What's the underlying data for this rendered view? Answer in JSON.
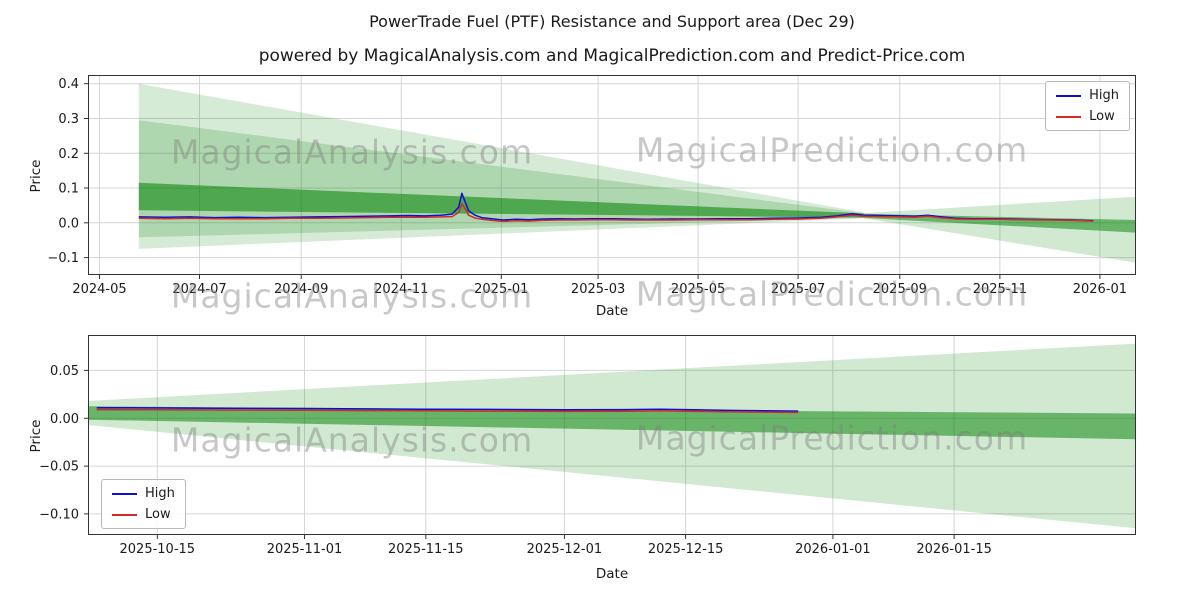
{
  "page": {
    "title": "PowerTrade Fuel (PTF) Resistance and Support area (Dec 29)",
    "subtitle": "powered by MagicalAnalysis.com and MagicalPrediction.com and Predict-Price.com"
  },
  "watermarks": {
    "analysis": "MagicalAnalysis.com",
    "prediction": "MagicalPrediction.com"
  },
  "colors": {
    "high": "#0f0fcd",
    "low": "#d22b2b",
    "band": "#008000",
    "grid": "#d6d6d6",
    "spine": "#333333",
    "tick_text": "#1a1a1a"
  },
  "chart_data": [
    {
      "type": "line",
      "title": "",
      "xlabel": "Date",
      "ylabel": "Price",
      "grid": true,
      "x_range": [
        "2024-04-24",
        "2026-01-23"
      ],
      "ylim": [
        -0.15,
        0.425
      ],
      "ytick_decimals": 1,
      "yticks": [
        -0.1,
        0.0,
        0.1,
        0.2,
        0.3,
        0.4
      ],
      "xticks": [
        {
          "label": "2024-05",
          "date": "2024-05-01"
        },
        {
          "label": "2024-07",
          "date": "2024-07-01"
        },
        {
          "label": "2024-09",
          "date": "2024-09-01"
        },
        {
          "label": "2024-11",
          "date": "2024-11-01"
        },
        {
          "label": "2025-01",
          "date": "2025-01-01"
        },
        {
          "label": "2025-03",
          "date": "2025-03-01"
        },
        {
          "label": "2025-05",
          "date": "2025-05-01"
        },
        {
          "label": "2025-07",
          "date": "2025-07-01"
        },
        {
          "label": "2025-09",
          "date": "2025-09-01"
        },
        {
          "label": "2025-11",
          "date": "2025-11-01"
        },
        {
          "label": "2026-01",
          "date": "2026-01-01"
        }
      ],
      "legend": {
        "position": "top-right",
        "items": [
          {
            "label": "High",
            "color_key": "high"
          },
          {
            "label": "Low",
            "color_key": "low"
          }
        ]
      },
      "bands": [
        {
          "name": "outer-support-fan",
          "opacity": 0.16,
          "points": [
            [
              "2024-05-25",
              0.4
            ],
            [
              "2025-08-10",
              0.03
            ],
            [
              "2025-08-10",
              0.013
            ],
            [
              "2024-05-25",
              -0.075
            ]
          ]
        },
        {
          "name": "middle-support-fan",
          "opacity": 0.18,
          "points": [
            [
              "2024-05-25",
              0.295
            ],
            [
              "2025-08-10",
              0.028
            ],
            [
              "2025-08-10",
              0.014
            ],
            [
              "2024-05-25",
              -0.042
            ]
          ]
        },
        {
          "name": "inner-dark-fan",
          "opacity": 0.55,
          "points": [
            [
              "2024-05-25",
              0.115
            ],
            [
              "2025-08-10",
              0.027
            ],
            [
              "2025-08-10",
              0.015
            ],
            [
              "2024-05-25",
              0.036
            ]
          ]
        },
        {
          "name": "right-light-fan",
          "opacity": 0.18,
          "points": [
            [
              "2025-08-10",
              0.028
            ],
            [
              "2026-01-23",
              0.075
            ],
            [
              "2026-01-23",
              -0.115
            ],
            [
              "2025-08-10",
              0.013
            ]
          ]
        },
        {
          "name": "right-dark-strip",
          "opacity": 0.5,
          "points": [
            [
              "2025-08-10",
              0.026
            ],
            [
              "2026-01-23",
              0.008
            ],
            [
              "2026-01-23",
              -0.028
            ],
            [
              "2025-08-10",
              0.014
            ]
          ]
        }
      ],
      "series": [
        {
          "name": "High",
          "color_key": "high",
          "points": [
            [
              "2024-05-25",
              0.017
            ],
            [
              "2024-06-10",
              0.016
            ],
            [
              "2024-06-25",
              0.017
            ],
            [
              "2024-07-10",
              0.015
            ],
            [
              "2024-07-25",
              0.016
            ],
            [
              "2024-08-10",
              0.015
            ],
            [
              "2024-08-25",
              0.016
            ],
            [
              "2024-09-10",
              0.017
            ],
            [
              "2024-09-25",
              0.018
            ],
            [
              "2024-10-10",
              0.019
            ],
            [
              "2024-10-25",
              0.02
            ],
            [
              "2024-11-05",
              0.021
            ],
            [
              "2024-11-15",
              0.02
            ],
            [
              "2024-11-25",
              0.022
            ],
            [
              "2024-12-02",
              0.025
            ],
            [
              "2024-12-06",
              0.045
            ],
            [
              "2024-12-08",
              0.085
            ],
            [
              "2024-12-10",
              0.06
            ],
            [
              "2024-12-12",
              0.035
            ],
            [
              "2024-12-16",
              0.022
            ],
            [
              "2024-12-20",
              0.015
            ],
            [
              "2024-12-26",
              0.012
            ],
            [
              "2025-01-02",
              0.008
            ],
            [
              "2025-01-10",
              0.01
            ],
            [
              "2025-01-18",
              0.009
            ],
            [
              "2025-01-26",
              0.011
            ],
            [
              "2025-02-05",
              0.012
            ],
            [
              "2025-02-15",
              0.011
            ],
            [
              "2025-02-25",
              0.012
            ],
            [
              "2025-03-10",
              0.012
            ],
            [
              "2025-03-20",
              0.011
            ],
            [
              "2025-04-01",
              0.01
            ],
            [
              "2025-04-15",
              0.011
            ],
            [
              "2025-05-01",
              0.011
            ],
            [
              "2025-05-15",
              0.012
            ],
            [
              "2025-06-01",
              0.012
            ],
            [
              "2025-06-15",
              0.013
            ],
            [
              "2025-07-01",
              0.014
            ],
            [
              "2025-07-15",
              0.016
            ],
            [
              "2025-07-25",
              0.02
            ],
            [
              "2025-08-03",
              0.026
            ],
            [
              "2025-08-10",
              0.022
            ],
            [
              "2025-08-20",
              0.021
            ],
            [
              "2025-09-01",
              0.02
            ],
            [
              "2025-09-10",
              0.019
            ],
            [
              "2025-09-18",
              0.022
            ],
            [
              "2025-09-25",
              0.018
            ],
            [
              "2025-10-05",
              0.013
            ],
            [
              "2025-10-15",
              0.012
            ],
            [
              "2025-11-01",
              0.012
            ],
            [
              "2025-11-15",
              0.01
            ],
            [
              "2025-12-01",
              0.009
            ],
            [
              "2025-12-15",
              0.008
            ],
            [
              "2025-12-28",
              0.006
            ]
          ]
        },
        {
          "name": "Low",
          "color_key": "low",
          "points": [
            [
              "2024-05-25",
              0.013
            ],
            [
              "2024-06-10",
              0.012
            ],
            [
              "2024-06-25",
              0.013
            ],
            [
              "2024-07-10",
              0.012
            ],
            [
              "2024-07-25",
              0.012
            ],
            [
              "2024-08-10",
              0.012
            ],
            [
              "2024-08-25",
              0.013
            ],
            [
              "2024-09-10",
              0.013
            ],
            [
              "2024-09-25",
              0.014
            ],
            [
              "2024-10-10",
              0.015
            ],
            [
              "2024-10-25",
              0.016
            ],
            [
              "2024-11-05",
              0.016
            ],
            [
              "2024-11-15",
              0.016
            ],
            [
              "2024-11-25",
              0.017
            ],
            [
              "2024-12-02",
              0.018
            ],
            [
              "2024-12-06",
              0.03
            ],
            [
              "2024-12-08",
              0.055
            ],
            [
              "2024-12-10",
              0.04
            ],
            [
              "2024-12-12",
              0.022
            ],
            [
              "2024-12-16",
              0.014
            ],
            [
              "2024-12-20",
              0.01
            ],
            [
              "2024-12-26",
              0.007
            ],
            [
              "2025-01-02",
              0.004
            ],
            [
              "2025-01-10",
              0.006
            ],
            [
              "2025-01-18",
              0.005
            ],
            [
              "2025-01-26",
              0.007
            ],
            [
              "2025-02-05",
              0.008
            ],
            [
              "2025-02-15",
              0.008
            ],
            [
              "2025-02-25",
              0.009
            ],
            [
              "2025-03-10",
              0.009
            ],
            [
              "2025-03-20",
              0.008
            ],
            [
              "2025-04-01",
              0.008
            ],
            [
              "2025-04-15",
              0.008
            ],
            [
              "2025-05-01",
              0.009
            ],
            [
              "2025-05-15",
              0.009
            ],
            [
              "2025-06-01",
              0.009
            ],
            [
              "2025-06-15",
              0.01
            ],
            [
              "2025-07-01",
              0.011
            ],
            [
              "2025-07-15",
              0.013
            ],
            [
              "2025-07-25",
              0.017
            ],
            [
              "2025-08-03",
              0.022
            ],
            [
              "2025-08-10",
              0.019
            ],
            [
              "2025-08-20",
              0.018
            ],
            [
              "2025-09-01",
              0.017
            ],
            [
              "2025-09-10",
              0.016
            ],
            [
              "2025-09-18",
              0.019
            ],
            [
              "2025-09-25",
              0.015
            ],
            [
              "2025-10-05",
              0.011
            ],
            [
              "2025-10-15",
              0.01
            ],
            [
              "2025-11-01",
              0.01
            ],
            [
              "2025-11-15",
              0.009
            ],
            [
              "2025-12-01",
              0.008
            ],
            [
              "2025-12-15",
              0.007
            ],
            [
              "2025-12-28",
              0.005
            ]
          ]
        }
      ]
    },
    {
      "type": "line",
      "title": "",
      "xlabel": "Date",
      "ylabel": "Price",
      "grid": true,
      "x_range": [
        "2025-10-07",
        "2026-02-05"
      ],
      "ylim": [
        -0.122,
        0.087
      ],
      "ytick_decimals": 2,
      "yticks": [
        0.05,
        0.0,
        -0.05,
        -0.1
      ],
      "xticks": [
        {
          "label": "2025-10-15",
          "date": "2025-10-15"
        },
        {
          "label": "2025-11-01",
          "date": "2025-11-01"
        },
        {
          "label": "2025-11-15",
          "date": "2025-11-15"
        },
        {
          "label": "2025-12-01",
          "date": "2025-12-01"
        },
        {
          "label": "2025-12-15",
          "date": "2025-12-15"
        },
        {
          "label": "2026-01-01",
          "date": "2026-01-01"
        },
        {
          "label": "2026-01-15",
          "date": "2026-01-15"
        }
      ],
      "legend": {
        "position": "bottom-left",
        "items": [
          {
            "label": "High",
            "color_key": "high"
          },
          {
            "label": "Low",
            "color_key": "low"
          }
        ]
      },
      "bands": [
        {
          "name": "light-expanding-fan",
          "opacity": 0.18,
          "points": [
            [
              "2025-10-07",
              0.018
            ],
            [
              "2026-02-05",
              0.078
            ],
            [
              "2026-02-05",
              -0.115
            ],
            [
              "2025-10-07",
              -0.007
            ]
          ]
        },
        {
          "name": "dark-support-band",
          "opacity": 0.5,
          "points": [
            [
              "2025-10-07",
              0.0125
            ],
            [
              "2026-02-05",
              0.005
            ],
            [
              "2026-02-05",
              -0.022
            ],
            [
              "2025-10-07",
              -0.0015
            ]
          ]
        }
      ],
      "series": [
        {
          "name": "High",
          "color_key": "high",
          "points": [
            [
              "2025-10-08",
              0.011
            ],
            [
              "2025-10-15",
              0.0108
            ],
            [
              "2025-10-22",
              0.0105
            ],
            [
              "2025-11-01",
              0.0102
            ],
            [
              "2025-11-08",
              0.0098
            ],
            [
              "2025-11-15",
              0.0095
            ],
            [
              "2025-11-22",
              0.0092
            ],
            [
              "2025-12-01",
              0.0088
            ],
            [
              "2025-12-08",
              0.009
            ],
            [
              "2025-12-12",
              0.0095
            ],
            [
              "2025-12-16",
              0.0088
            ],
            [
              "2025-12-20",
              0.0082
            ],
            [
              "2025-12-24",
              0.0078
            ],
            [
              "2025-12-28",
              0.0075
            ]
          ]
        },
        {
          "name": "Low",
          "color_key": "low",
          "points": [
            [
              "2025-10-08",
              0.009
            ],
            [
              "2025-10-15",
              0.0088
            ],
            [
              "2025-10-22",
              0.0086
            ],
            [
              "2025-11-01",
              0.0084
            ],
            [
              "2025-11-08",
              0.008
            ],
            [
              "2025-11-15",
              0.0078
            ],
            [
              "2025-11-22",
              0.0075
            ],
            [
              "2025-12-01",
              0.0072
            ],
            [
              "2025-12-08",
              0.0074
            ],
            [
              "2025-12-12",
              0.0078
            ],
            [
              "2025-12-16",
              0.0072
            ],
            [
              "2025-12-20",
              0.0068
            ],
            [
              "2025-12-24",
              0.0064
            ],
            [
              "2025-12-28",
              0.006
            ]
          ]
        }
      ]
    }
  ]
}
